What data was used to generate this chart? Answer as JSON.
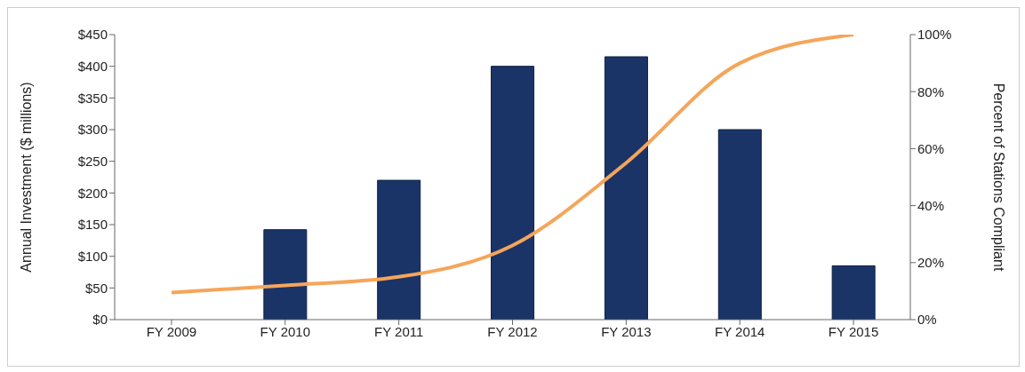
{
  "chart_data": {
    "type": "bar",
    "categories": [
      "FY 2009",
      "FY 2010",
      "FY 2011",
      "FY 2012",
      "FY 2013",
      "FY 2014",
      "FY 2015"
    ],
    "ylabel": "Annual Investment ($ millions)",
    "y2label": "Percent of Stations Compliant",
    "series": [
      {
        "color": "#1b3468",
        "values": [
          null,
          142,
          220,
          400,
          415,
          300,
          85
        ]
      },
      {
        "type": "line",
        "axis": "y2",
        "color": "#f5a55a",
        "values": [
          9.5,
          12,
          15,
          26,
          55,
          90,
          100
        ]
      }
    ],
    "ylim": [
      0,
      450
    ],
    "yticks": [
      {
        "value": 0,
        "label": "$0"
      },
      {
        "value": 50,
        "label": "$50"
      },
      {
        "value": 100,
        "label": "$100"
      },
      {
        "value": 150,
        "label": "$150"
      },
      {
        "value": 200,
        "label": "$200"
      },
      {
        "value": 250,
        "label": "$250"
      },
      {
        "value": 300,
        "label": "$300"
      },
      {
        "value": 350,
        "label": "$350"
      },
      {
        "value": 400,
        "label": "$400"
      },
      {
        "value": 450,
        "label": "$450"
      }
    ],
    "y2lim": [
      0,
      100
    ],
    "y2ticks": [
      {
        "value": 0,
        "label": "0%"
      },
      {
        "value": 20,
        "label": "20%"
      },
      {
        "value": 40,
        "label": "40%"
      },
      {
        "value": 60,
        "label": "60%"
      },
      {
        "value": 80,
        "label": "80%"
      },
      {
        "value": 100,
        "label": "100%"
      }
    ],
    "grid": false,
    "legend": false,
    "marker": "none"
  }
}
